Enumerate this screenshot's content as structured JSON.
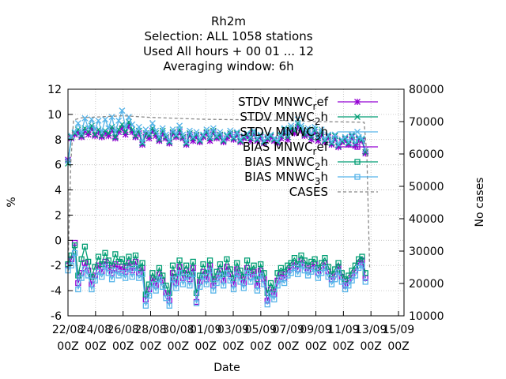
{
  "chart_data": {
    "type": "line",
    "title_lines": [
      "Rh2m",
      "Selection: ALL    1058 stations",
      "Used  All hours  + 00 01 ... 12",
      "Averaging window:  6h"
    ],
    "xlabel": "Date",
    "ylabel": "%",
    "y2label": "No cases",
    "ylim": [
      -6,
      12
    ],
    "y2lim": [
      10000,
      80000
    ],
    "yticks": [
      "-6",
      "-4",
      "-2",
      "0",
      "2",
      "4",
      "6",
      "8",
      "10",
      "12"
    ],
    "y2ticks": [
      "10000",
      "20000",
      "30000",
      "40000",
      "50000",
      "60000",
      "70000",
      "80000"
    ],
    "xticks": [
      {
        "day": 0,
        "l1": "22/08",
        "l2": "00Z"
      },
      {
        "day": 2,
        "l1": "24/08",
        "l2": "00Z"
      },
      {
        "day": 4,
        "l1": "26/08",
        "l2": "00Z"
      },
      {
        "day": 6,
        "l1": "28/08",
        "l2": "00Z"
      },
      {
        "day": 8,
        "l1": "30/08",
        "l2": "00Z"
      },
      {
        "day": 10,
        "l1": "01/09",
        "l2": "00Z"
      },
      {
        "day": 12,
        "l1": "03/09",
        "l2": "00Z"
      },
      {
        "day": 14,
        "l1": "05/09",
        "l2": "00Z"
      },
      {
        "day": 16,
        "l1": "07/09",
        "l2": "00Z"
      },
      {
        "day": 18,
        "l1": "09/09",
        "l2": "00Z"
      },
      {
        "day": 20,
        "l1": "11/09",
        "l2": "00Z"
      },
      {
        "day": 22,
        "l1": "13/09",
        "l2": "00Z"
      },
      {
        "day": 24,
        "l1": "15/09",
        "l2": "00Z"
      }
    ],
    "xlim_days": [
      0,
      24.4
    ],
    "grid": true,
    "legend_position": "top-right",
    "series": [
      {
        "name": "STDV MNWC_ref",
        "label_main": "STDV MNWC",
        "label_sub": "r",
        "label_tail": "ef",
        "color": "#9400d3",
        "marker": "star",
        "axis": "y1",
        "values": [
          6.4,
          8.1,
          8.4,
          8.6,
          8.2,
          8.7,
          8.4,
          8.9,
          8.3,
          8.6,
          8.2,
          8.5,
          8.3,
          8.8,
          8.1,
          8.6,
          8.9,
          8.4,
          9.1,
          8.6,
          8.2,
          8.5,
          7.6,
          8.4,
          8.1,
          8.7,
          8.3,
          7.9,
          8.5,
          8.1,
          7.7,
          8.5,
          8.2,
          8.6,
          8.1,
          7.6,
          8.4,
          7.9,
          8.3,
          7.8,
          8.2,
          8.5,
          7.9,
          8.6,
          8.1,
          8.3,
          7.8,
          8.1,
          8.4,
          8.0,
          8.4,
          7.8,
          8.1,
          8.3,
          7.9,
          8.5,
          7.9,
          8.2,
          7.7,
          8.0,
          8.2,
          7.9,
          7.7,
          8.1,
          8.6,
          8.0,
          8.7,
          8.5,
          9.0,
          8.7,
          8.3,
          8.5,
          8.0,
          8.6,
          7.9,
          8.4,
          7.8,
          8.2,
          7.6,
          8.1,
          7.4,
          7.8,
          8.0,
          7.6,
          8.2,
          7.5,
          8.0,
          7.9,
          6.9
        ]
      },
      {
        "name": "STDV MNWC_2h",
        "label_main": "STDV MNWC",
        "label_sub": "2",
        "label_tail": "h",
        "color": "#009e73",
        "marker": "xcross",
        "axis": "y1",
        "values": [
          6.1,
          8.2,
          8.5,
          8.8,
          8.3,
          8.9,
          8.6,
          9.1,
          8.4,
          8.8,
          8.3,
          8.7,
          8.5,
          9.0,
          8.2,
          8.8,
          9.2,
          8.6,
          9.4,
          8.8,
          8.3,
          8.7,
          7.7,
          8.5,
          8.3,
          8.9,
          8.5,
          8.0,
          8.7,
          8.2,
          7.8,
          8.6,
          8.3,
          8.8,
          8.2,
          7.7,
          8.5,
          8.1,
          8.4,
          7.9,
          8.3,
          8.6,
          8.1,
          8.7,
          8.2,
          8.4,
          7.9,
          8.3,
          8.5,
          8.1,
          8.5,
          7.9,
          8.2,
          8.4,
          8.1,
          8.6,
          8.0,
          8.3,
          7.8,
          8.1,
          8.3,
          8.0,
          7.8,
          8.3,
          8.8,
          8.2,
          8.9,
          8.7,
          9.3,
          8.9,
          8.4,
          8.7,
          8.2,
          8.8,
          8.1,
          8.6,
          7.9,
          8.3,
          7.7,
          8.3,
          7.5,
          7.9,
          8.1,
          7.7,
          8.3,
          7.6,
          8.1,
          8.0,
          7.0
        ]
      },
      {
        "name": "STDV MNWC_3h",
        "label_main": "STDV MNWC",
        "label_sub": "3",
        "label_tail": "h",
        "color": "#56b4e9",
        "marker": "xcross",
        "axis": "y1",
        "values": [
          6.3,
          8.3,
          8.6,
          9.3,
          8.5,
          9.7,
          8.9,
          9.6,
          8.8,
          9.5,
          8.6,
          9.6,
          8.9,
          9.8,
          8.6,
          9.5,
          10.3,
          9.0,
          9.8,
          9.2,
          8.6,
          9.0,
          7.8,
          8.8,
          8.5,
          9.3,
          8.7,
          8.2,
          8.9,
          8.4,
          7.9,
          8.8,
          8.4,
          9.1,
          8.4,
          7.8,
          8.7,
          8.2,
          8.6,
          8.0,
          8.4,
          8.8,
          8.2,
          8.9,
          8.3,
          8.6,
          8.0,
          8.4,
          8.7,
          8.2,
          8.6,
          8.0,
          8.3,
          8.5,
          8.2,
          8.7,
          8.1,
          8.4,
          7.9,
          8.2,
          8.4,
          8.1,
          7.9,
          8.4,
          8.9,
          8.4,
          9.1,
          8.8,
          9.6,
          9.1,
          8.6,
          8.9,
          8.4,
          9.0,
          8.2,
          8.8,
          8.0,
          8.4,
          7.8,
          8.4,
          7.6,
          8.0,
          8.2,
          7.8,
          8.4,
          7.7,
          8.2,
          8.1,
          7.2
        ]
      },
      {
        "name": "BIAS MNWC_ref",
        "label_main": "BIAS MNWC",
        "label_sub": "r",
        "label_tail": "ef",
        "color": "#9400d3",
        "marker": "square",
        "axis": "y1",
        "values": [
          -2.0,
          -1.5,
          -0.2,
          -3.4,
          -2.6,
          -1.8,
          -2.4,
          -3.5,
          -2.8,
          -2.0,
          -2.5,
          -1.7,
          -2.2,
          -2.6,
          -1.9,
          -2.3,
          -2.1,
          -2.5,
          -1.8,
          -2.4,
          -1.7,
          -2.6,
          -2.2,
          -4.7,
          -3.9,
          -3.0,
          -3.6,
          -2.7,
          -3.2,
          -4.2,
          -4.8,
          -2.6,
          -3.4,
          -2.1,
          -3.0,
          -2.4,
          -3.1,
          -2.2,
          -4.9,
          -3.3,
          -2.5,
          -3.1,
          -2.0,
          -3.6,
          -3.0,
          -2.4,
          -3.2,
          -2.1,
          -2.7,
          -3.5,
          -2.3,
          -2.8,
          -3.4,
          -2.2,
          -2.9,
          -2.5,
          -3.6,
          -2.4,
          -3.1,
          -4.8,
          -3.9,
          -4.3,
          -3.2,
          -2.7,
          -3.0,
          -2.4,
          -2.2,
          -1.8,
          -2.3,
          -1.6,
          -2.0,
          -2.4,
          -2.1,
          -1.9,
          -2.6,
          -2.2,
          -1.8,
          -2.5,
          -3.1,
          -2.7,
          -2.1,
          -2.9,
          -3.6,
          -3.2,
          -2.8,
          -2.4,
          -1.8,
          -1.6,
          -3.0
        ]
      },
      {
        "name": "BIAS MNWC_2h",
        "label_main": "BIAS MNWC",
        "label_sub": "2",
        "label_tail": "h",
        "color": "#009e73",
        "marker": "square",
        "axis": "y1",
        "values": [
          -1.9,
          -1.2,
          -0.4,
          -2.8,
          -1.5,
          -0.5,
          -1.7,
          -2.9,
          -2.1,
          -1.3,
          -1.9,
          -1.0,
          -1.6,
          -2.0,
          -1.1,
          -1.7,
          -1.5,
          -2.0,
          -1.3,
          -1.9,
          -1.2,
          -2.2,
          -1.8,
          -4.3,
          -3.5,
          -2.6,
          -3.1,
          -2.2,
          -2.8,
          -3.6,
          -4.2,
          -2.0,
          -2.9,
          -1.6,
          -2.6,
          -2.0,
          -2.7,
          -1.7,
          -4.2,
          -2.8,
          -1.9,
          -2.6,
          -1.6,
          -3.1,
          -2.5,
          -1.9,
          -2.7,
          -1.5,
          -2.3,
          -3.0,
          -1.8,
          -2.4,
          -2.9,
          -1.6,
          -2.4,
          -2.0,
          -3.1,
          -1.9,
          -2.6,
          -4.2,
          -3.4,
          -3.9,
          -2.6,
          -2.2,
          -2.5,
          -2.0,
          -1.8,
          -1.4,
          -1.9,
          -1.2,
          -1.6,
          -2.0,
          -1.7,
          -1.5,
          -2.2,
          -1.8,
          -1.4,
          -2.1,
          -2.7,
          -2.3,
          -1.8,
          -2.6,
          -3.1,
          -2.8,
          -2.4,
          -2.0,
          -1.5,
          -1.3,
          -2.6
        ]
      },
      {
        "name": "BIAS MNWC_3h",
        "label_main": "BIAS MNWC",
        "label_sub": "3",
        "label_tail": "h",
        "color": "#56b4e9",
        "marker": "square",
        "axis": "y1",
        "values": [
          -2.4,
          -2.0,
          -1.0,
          -3.9,
          -3.0,
          -2.3,
          -2.8,
          -3.9,
          -3.2,
          -2.5,
          -2.9,
          -2.1,
          -2.6,
          -3.1,
          -2.4,
          -2.8,
          -2.6,
          -3.0,
          -2.3,
          -2.9,
          -2.2,
          -3.0,
          -2.7,
          -5.2,
          -4.4,
          -3.5,
          -4.0,
          -3.1,
          -3.7,
          -4.6,
          -5.2,
          -3.1,
          -3.8,
          -2.6,
          -3.5,
          -2.9,
          -3.6,
          -2.7,
          -5.0,
          -3.7,
          -2.9,
          -3.5,
          -2.4,
          -4.0,
          -3.4,
          -2.8,
          -3.6,
          -2.6,
          -3.2,
          -3.9,
          -2.7,
          -3.3,
          -3.8,
          -2.6,
          -3.3,
          -2.9,
          -4.0,
          -2.8,
          -3.5,
          -5.1,
          -4.3,
          -4.7,
          -3.6,
          -3.1,
          -3.4,
          -2.8,
          -2.6,
          -2.2,
          -2.7,
          -2.0,
          -2.4,
          -2.8,
          -2.5,
          -2.3,
          -3.0,
          -2.6,
          -2.2,
          -2.9,
          -3.5,
          -3.1,
          -2.5,
          -3.3,
          -3.9,
          -3.6,
          -3.2,
          -2.8,
          -2.2,
          -2.0,
          -3.3
        ]
      },
      {
        "name": "CASES",
        "label_main": "CASES",
        "label_sub": "",
        "label_tail": "",
        "color": "#888888",
        "marker": "dashed",
        "axis": "y2",
        "points": [
          [
            0,
            25000
          ],
          [
            0.2,
            57000
          ],
          [
            0.4,
            70500
          ],
          [
            1.0,
            71200
          ],
          [
            4.0,
            71800
          ],
          [
            6.0,
            71300
          ],
          [
            8.0,
            71000
          ],
          [
            10.0,
            70700
          ],
          [
            12.0,
            70600
          ],
          [
            14.0,
            70500
          ],
          [
            16.0,
            70300
          ],
          [
            18.0,
            70000
          ],
          [
            20.0,
            69900
          ],
          [
            21.5,
            69800
          ],
          [
            21.7,
            60000
          ],
          [
            21.9,
            25000
          ]
        ]
      }
    ]
  }
}
